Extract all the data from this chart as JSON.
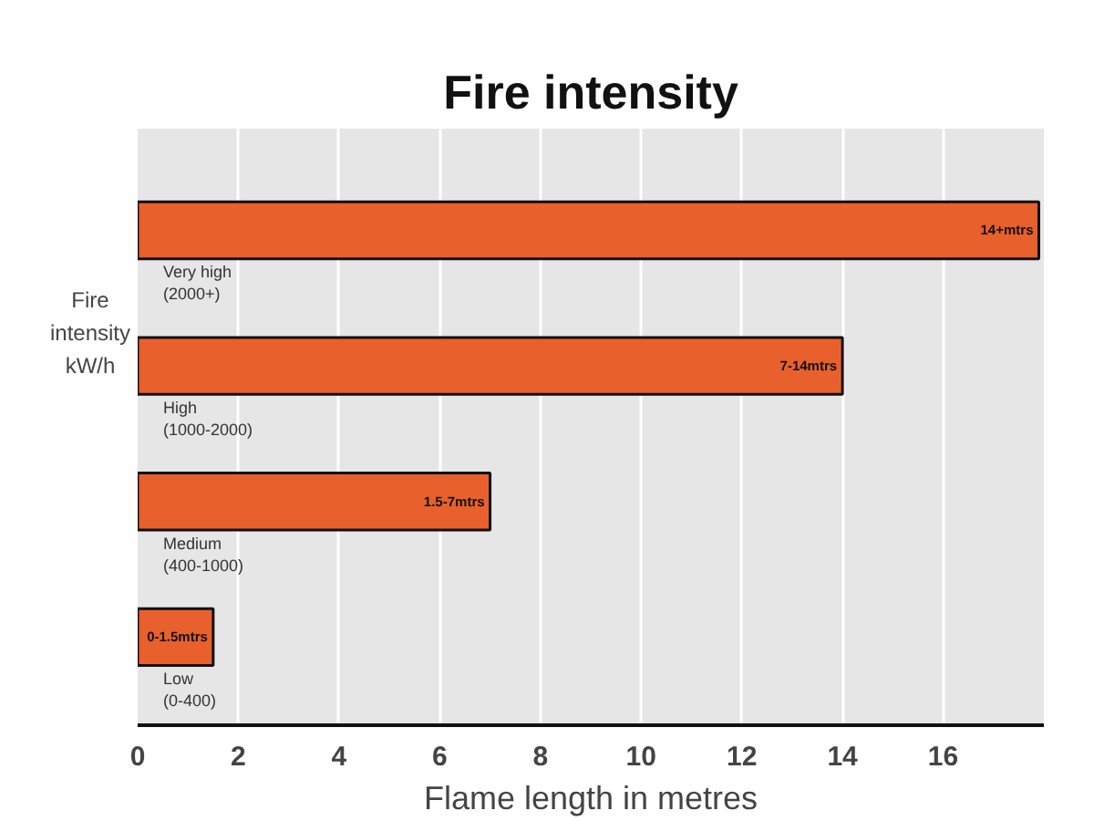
{
  "chart_data": {
    "type": "bar",
    "orientation": "horizontal",
    "title": "Fire intensity",
    "xlabel": "Flame length in metres",
    "ylabel": "Fire\nintensity\nkW/h",
    "categories": [
      "Very high\n(2000+)",
      "High\n(1000-2000)",
      "Medium\n(400-1000)",
      "Low\n(0-400)"
    ],
    "values": [
      17.9,
      14,
      7,
      1.5
    ],
    "value_labels": [
      "14+mtrs",
      "7-14mtrs",
      "1.5-7mtrs",
      "0-1.5mtrs"
    ],
    "color": "#e8602c",
    "xlim": [
      0,
      18
    ],
    "xticks": [
      0,
      2,
      4,
      6,
      8,
      10,
      12,
      14,
      16
    ],
    "grid": "x",
    "tick_labels": "x"
  }
}
